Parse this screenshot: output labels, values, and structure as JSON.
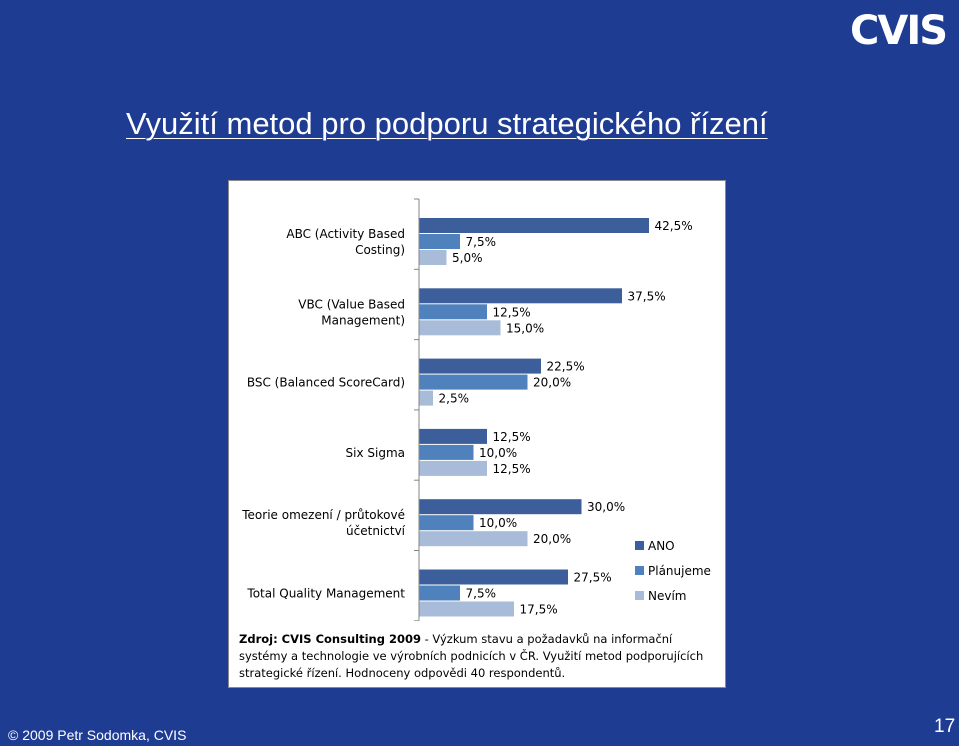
{
  "slide": {
    "title": "Využití metod pro podporu strategického řízení",
    "logo_text": "CVIS",
    "footer": "© 2009 Petr Sodomka, CVIS",
    "page_number": "17"
  },
  "source_note": {
    "label": "Zdroj: CVIS Consulting 2009",
    "text": " - Výzkum stavu a požadavků na informační systémy a technologie ve výrobních podnicích v ČR. Využití metod podporujících strategické řízení. Hodnoceny odpovědi 40 respondentů."
  },
  "chart_data": {
    "type": "bar",
    "orientation": "horizontal",
    "categories": [
      "ABC (Activity Based Costing)",
      "VBC (Value Based Management)",
      "BSC (Balanced ScoreCard)",
      "Six Sigma",
      "Teorie omezení / průtokové účetnictví",
      "Total Quality Management"
    ],
    "series": [
      {
        "name": "ANO",
        "color": "#3c5f9b",
        "values": [
          42.5,
          37.5,
          22.5,
          12.5,
          30.0,
          27.5
        ],
        "labels": [
          "42,5%",
          "37,5%",
          "22,5%",
          "12,5%",
          "30,0%",
          "27,5%"
        ]
      },
      {
        "name": "Plánujeme",
        "color": "#4f81bd",
        "values": [
          7.5,
          12.5,
          20.0,
          10.0,
          10.0,
          7.5
        ],
        "labels": [
          "7,5%",
          "12,5%",
          "20,0%",
          "10,0%",
          "10,0%",
          "7,5%"
        ]
      },
      {
        "name": "Nevím",
        "color": "#a8bbd9",
        "values": [
          5.0,
          15.0,
          2.5,
          12.5,
          20.0,
          17.5
        ],
        "labels": [
          "5,0%",
          "15,0%",
          "2,5%",
          "12,5%",
          "20,0%",
          "17,5%"
        ]
      }
    ],
    "xlim": [
      0,
      50
    ],
    "grid": false,
    "legend_position": "right"
  }
}
